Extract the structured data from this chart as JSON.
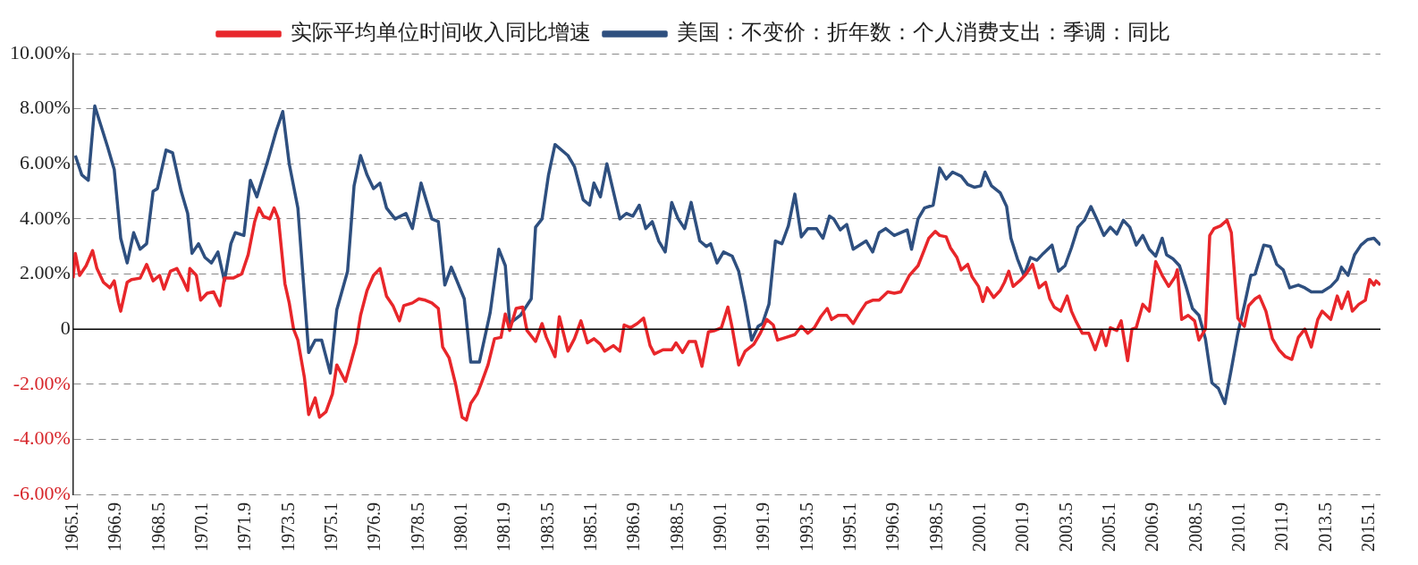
{
  "chart_data": {
    "type": "line",
    "series": [
      {
        "name": "实际平均单位时间收入同比增速",
        "color": "#e8262a",
        "x": [
          "1965-01",
          "1965-02",
          "1965-04",
          "1965-07",
          "1965-10",
          "1965-12",
          "1966-03",
          "1966-06",
          "1966-08",
          "1966-10",
          "1966-11",
          "1967-02",
          "1967-04",
          "1967-08",
          "1967-11",
          "1968-02",
          "1968-05",
          "1968-07",
          "1968-10",
          "1969-01",
          "1969-04",
          "1969-06",
          "1969-07",
          "1969-10",
          "1969-12",
          "1970-03",
          "1970-06",
          "1970-09",
          "1970-11",
          "1971-03",
          "1971-07",
          "1971-10",
          "1972-01",
          "1972-03",
          "1972-05",
          "1972-08",
          "1972-10",
          "1972-12",
          "1973-03",
          "1973-05",
          "1973-07",
          "1973-09",
          "1973-12",
          "1974-02",
          "1974-05",
          "1974-07",
          "1974-10",
          "1975-01",
          "1975-03",
          "1975-07",
          "1975-09",
          "1975-12",
          "1976-02",
          "1976-05",
          "1976-08",
          "1976-11",
          "1977-02",
          "1977-05",
          "1977-08",
          "1977-10",
          "1978-02",
          "1978-05",
          "1978-08",
          "1978-11",
          "1979-02",
          "1979-04",
          "1979-07",
          "1979-10",
          "1980-01",
          "1980-03",
          "1980-05",
          "1980-08",
          "1980-10",
          "1981-01",
          "1981-04",
          "1981-07",
          "1981-09",
          "1981-11",
          "1982-02",
          "1982-05",
          "1982-07",
          "1982-11",
          "1983-02",
          "1983-04",
          "1983-08",
          "1983-10",
          "1984-02",
          "1984-05",
          "1984-08",
          "1984-11",
          "1985-02",
          "1985-05",
          "1985-07",
          "1985-11",
          "1986-02",
          "1986-04",
          "1986-07",
          "1986-10",
          "1987-01",
          "1987-04",
          "1987-06",
          "1987-10",
          "1988-02",
          "1988-04",
          "1988-07",
          "1988-10",
          "1989-01",
          "1989-04",
          "1989-07",
          "1989-10",
          "1990-01",
          "1990-04",
          "1990-06",
          "1990-09",
          "1990-12",
          "1991-04",
          "1991-07",
          "1991-10",
          "1992-01",
          "1992-03",
          "1992-07",
          "1992-11",
          "1993-02",
          "1993-05",
          "1993-08",
          "1993-11",
          "1994-02",
          "1994-04",
          "1994-07",
          "1994-11",
          "1995-02",
          "1995-05",
          "1995-08",
          "1995-11",
          "1996-02",
          "1996-06",
          "1996-09",
          "1996-12",
          "1997-04",
          "1997-08",
          "1997-11",
          "1998-01",
          "1998-04",
          "1998-06",
          "1998-09",
          "1998-11",
          "1999-02",
          "1999-04",
          "1999-07",
          "1999-09",
          "1999-12",
          "2000-02",
          "2000-04",
          "2000-07",
          "2000-10",
          "2000-12",
          "2001-02",
          "2001-04",
          "2001-07",
          "2001-10",
          "2002-01",
          "2002-04",
          "2002-07",
          "2002-09",
          "2002-11",
          "2003-02",
          "2003-05",
          "2003-07",
          "2003-09",
          "2003-12",
          "2004-03",
          "2004-06",
          "2004-09",
          "2004-11",
          "2005-01",
          "2005-04",
          "2005-06",
          "2005-09",
          "2005-11",
          "2006-01",
          "2006-04",
          "2006-07",
          "2006-10",
          "2007-01",
          "2007-04",
          "2007-07",
          "2007-08",
          "2007-10",
          "2008-01",
          "2008-04",
          "2008-06",
          "2008-09",
          "2008-11",
          "2009-01",
          "2009-04",
          "2009-07",
          "2009-09",
          "2009-12",
          "2010-03",
          "2010-05",
          "2010-08",
          "2010-10",
          "2011-01",
          "2011-04",
          "2011-07",
          "2011-10",
          "2012-01",
          "2012-04",
          "2012-07",
          "2012-10",
          "2013-01",
          "2013-03",
          "2013-07",
          "2013-10",
          "2013-12",
          "2014-03",
          "2014-05",
          "2014-08",
          "2014-11",
          "2015-01",
          "2015-03",
          "2015-04",
          "2015-06"
        ],
        "values": [
          1.85,
          2.75,
          1.95,
          2.3,
          2.85,
          2.2,
          1.7,
          1.5,
          1.75,
          0.95,
          0.65,
          1.7,
          1.8,
          1.85,
          2.35,
          1.75,
          1.95,
          1.45,
          2.1,
          2.2,
          1.75,
          1.4,
          2.2,
          1.95,
          1.05,
          1.3,
          1.35,
          0.85,
          1.85,
          1.85,
          2.0,
          2.7,
          3.9,
          4.4,
          4.1,
          4.0,
          4.4,
          4.0,
          1.65,
          0.95,
          0.0,
          -0.4,
          -1.75,
          -3.1,
          -2.5,
          -3.2,
          -3.0,
          -2.35,
          -1.3,
          -1.9,
          -1.35,
          -0.5,
          0.5,
          1.4,
          1.95,
          2.2,
          1.2,
          0.85,
          0.3,
          0.85,
          0.95,
          1.1,
          1.05,
          0.95,
          0.75,
          -0.65,
          -1.05,
          -2.0,
          -3.2,
          -3.3,
          -2.7,
          -2.35,
          -1.95,
          -1.3,
          -0.35,
          -0.3,
          0.55,
          -0.05,
          0.75,
          0.8,
          -0.05,
          -0.45,
          0.2,
          -0.3,
          -1.0,
          0.45,
          -0.8,
          -0.35,
          0.3,
          -0.5,
          -0.35,
          -0.55,
          -0.8,
          -0.6,
          -0.8,
          0.15,
          0.05,
          0.2,
          0.4,
          -0.6,
          -0.9,
          -0.75,
          -0.75,
          -0.5,
          -0.85,
          -0.45,
          -0.45,
          -1.35,
          -0.1,
          -0.05,
          0.05,
          0.8,
          0.05,
          -1.3,
          -0.8,
          -0.55,
          -0.15,
          0.35,
          0.15,
          -0.4,
          -0.3,
          -0.2,
          0.1,
          -0.15,
          0.05,
          0.45,
          0.75,
          0.35,
          0.5,
          0.5,
          0.2,
          0.6,
          0.95,
          1.05,
          1.05,
          1.35,
          1.3,
          1.35,
          1.95,
          2.3,
          2.9,
          3.3,
          3.55,
          3.4,
          3.35,
          2.95,
          2.6,
          2.15,
          2.35,
          1.9,
          1.55,
          1.0,
          1.5,
          1.15,
          1.4,
          1.7,
          2.1,
          1.55,
          1.75,
          2.0,
          2.35,
          1.5,
          1.7,
          1.1,
          0.8,
          0.65,
          1.2,
          0.65,
          0.3,
          -0.15,
          -0.15,
          -0.75,
          -0.05,
          -0.6,
          0.05,
          -0.05,
          0.3,
          -1.15,
          0.0,
          0.05,
          0.9,
          0.65,
          2.45,
          1.95,
          1.55,
          1.9,
          2.15,
          0.35,
          0.5,
          0.3,
          -0.4,
          0.0,
          3.4,
          3.65,
          3.75,
          3.95,
          3.5,
          0.4,
          0.1,
          0.85,
          1.1,
          1.2,
          0.65,
          -0.35,
          -0.75,
          -1.0,
          -1.1,
          -0.3,
          0.0,
          -0.65,
          0.35,
          0.65,
          0.35,
          1.2,
          0.75,
          1.35,
          0.65,
          0.9,
          1.05,
          1.8,
          1.6,
          1.75,
          1.6
        ]
      },
      {
        "name": "美国：不变价：折年数：个人消费支出：季调：同比",
        "color": "#2e4f7f",
        "x": [
          "1965-02",
          "1965-05",
          "1965-08",
          "1965-11",
          "1966-05",
          "1966-08",
          "1966-11",
          "1967-02",
          "1967-05",
          "1967-08",
          "1967-11",
          "1968-02",
          "1968-04",
          "1968-08",
          "1968-11",
          "1969-03",
          "1969-06",
          "1969-08",
          "1969-11",
          "1970-02",
          "1970-05",
          "1970-08",
          "1970-11",
          "1971-02",
          "1971-04",
          "1971-08",
          "1971-11",
          "1972-02",
          "1972-07",
          "1972-11",
          "1973-02",
          "1973-05",
          "1973-09",
          "1974-02",
          "1974-05",
          "1974-08",
          "1974-12",
          "1975-03",
          "1975-08",
          "1975-11",
          "1976-02",
          "1976-05",
          "1976-08",
          "1976-11",
          "1977-02",
          "1977-06",
          "1977-11",
          "1978-02",
          "1978-06",
          "1978-11",
          "1979-02",
          "1979-05",
          "1979-08",
          "1980-02",
          "1980-05",
          "1980-09",
          "1981-02",
          "1981-06",
          "1981-09",
          "1981-11",
          "1982-04",
          "1982-09",
          "1982-11",
          "1983-02",
          "1983-05",
          "1983-08",
          "1984-02",
          "1984-05",
          "1984-09",
          "1984-12",
          "1985-02",
          "1985-05",
          "1985-08",
          "1985-11",
          "1986-02",
          "1986-05",
          "1986-08",
          "1986-11",
          "1987-02",
          "1987-05",
          "1987-08",
          "1987-11",
          "1988-02",
          "1988-05",
          "1988-08",
          "1988-11",
          "1989-03",
          "1989-06",
          "1989-08",
          "1989-11",
          "1990-02",
          "1990-06",
          "1990-09",
          "1990-12",
          "1991-03",
          "1991-06",
          "1991-08",
          "1991-11",
          "1992-02",
          "1992-05",
          "1992-08",
          "1992-11",
          "1993-02",
          "1993-05",
          "1993-09",
          "1993-12",
          "1994-03",
          "1994-05",
          "1994-08",
          "1994-11",
          "1995-02",
          "1995-08",
          "1995-11",
          "1996-02",
          "1996-05",
          "1996-09",
          "1997-03",
          "1997-05",
          "1997-08",
          "1997-11",
          "1998-03",
          "1998-06",
          "1998-09",
          "1998-12",
          "1999-04",
          "1999-07",
          "1999-10",
          "2000-01",
          "2000-03",
          "2000-06",
          "2000-10",
          "2001-01",
          "2001-03",
          "2001-06",
          "2001-09",
          "2001-12",
          "2002-03",
          "2002-06",
          "2002-10",
          "2003-01",
          "2003-04",
          "2003-07",
          "2003-10",
          "2004-01",
          "2004-04",
          "2004-07",
          "2004-10",
          "2005-01",
          "2005-04",
          "2005-07",
          "2005-10",
          "2006-01",
          "2006-04",
          "2006-07",
          "2006-10",
          "2007-01",
          "2007-03",
          "2007-06",
          "2007-09",
          "2007-12",
          "2008-03",
          "2008-06",
          "2008-09",
          "2008-12",
          "2009-03",
          "2009-06",
          "2009-09",
          "2009-12",
          "2010-03",
          "2010-06",
          "2010-08",
          "2010-12",
          "2011-03",
          "2011-06",
          "2011-09",
          "2011-12",
          "2012-04",
          "2012-07",
          "2012-10",
          "2013-03",
          "2013-07",
          "2013-10",
          "2013-12",
          "2014-03",
          "2014-06",
          "2014-09",
          "2014-12",
          "2015-03",
          "2015-06"
        ],
        "values": [
          6.3,
          5.6,
          5.4,
          8.1,
          6.6,
          5.8,
          3.3,
          2.4,
          3.5,
          2.9,
          3.1,
          5.0,
          5.1,
          6.5,
          6.4,
          5.0,
          4.2,
          2.75,
          3.1,
          2.6,
          2.4,
          2.8,
          1.75,
          3.1,
          3.5,
          3.4,
          5.4,
          4.8,
          6.1,
          7.2,
          7.9,
          6.0,
          4.4,
          -0.85,
          -0.4,
          -0.4,
          -1.6,
          0.7,
          2.1,
          5.2,
          6.3,
          5.6,
          5.1,
          5.3,
          4.4,
          4.0,
          4.2,
          3.65,
          5.3,
          4.0,
          3.9,
          1.6,
          2.25,
          1.1,
          -1.2,
          -1.2,
          0.6,
          2.9,
          2.3,
          0.2,
          0.5,
          1.1,
          3.7,
          4.0,
          5.6,
          6.7,
          6.3,
          5.9,
          4.7,
          4.5,
          5.3,
          4.8,
          6.0,
          5.0,
          4.0,
          4.2,
          4.1,
          4.5,
          3.65,
          3.9,
          3.2,
          2.8,
          4.6,
          4.0,
          3.65,
          4.6,
          3.2,
          3.0,
          3.1,
          2.4,
          2.8,
          2.65,
          2.1,
          0.95,
          -0.4,
          0.1,
          0.2,
          0.9,
          3.2,
          3.1,
          3.75,
          4.9,
          3.35,
          3.65,
          3.65,
          3.3,
          4.1,
          4.0,
          3.6,
          3.8,
          2.9,
          3.2,
          2.8,
          3.5,
          3.65,
          3.4,
          3.6,
          2.9,
          4.0,
          4.4,
          4.5,
          5.85,
          5.45,
          5.7,
          5.55,
          5.25,
          5.15,
          5.2,
          5.7,
          5.2,
          4.95,
          4.45,
          3.3,
          2.55,
          1.95,
          2.6,
          2.5,
          2.75,
          3.05,
          2.1,
          2.3,
          2.95,
          3.7,
          3.95,
          4.45,
          3.95,
          3.4,
          3.7,
          3.45,
          3.95,
          3.7,
          3.05,
          3.4,
          2.9,
          2.65,
          3.3,
          2.7,
          2.55,
          2.3,
          1.55,
          0.75,
          0.5,
          -0.35,
          -1.95,
          -2.15,
          -2.7,
          -1.45,
          -0.15,
          0.85,
          1.95,
          2.0,
          3.05,
          3.0,
          2.35,
          2.15,
          1.5,
          1.6,
          1.5,
          1.35,
          1.35,
          1.55,
          1.8,
          2.25,
          1.95,
          2.7,
          3.05,
          3.25,
          3.3,
          3.05
        ]
      }
    ],
    "xlim": [
      "1965-01",
      "2015-06"
    ],
    "xticks": [
      {
        "value": "1965-01",
        "label": "1965.1"
      },
      {
        "value": "1966-09",
        "label": "1966.9"
      },
      {
        "value": "1968-05",
        "label": "1968.5"
      },
      {
        "value": "1970-01",
        "label": "1970.1"
      },
      {
        "value": "1971-09",
        "label": "1971.9"
      },
      {
        "value": "1973-05",
        "label": "1973.5"
      },
      {
        "value": "1975-01",
        "label": "1975.1"
      },
      {
        "value": "1976-09",
        "label": "1976.9"
      },
      {
        "value": "1978-05",
        "label": "1978.5"
      },
      {
        "value": "1980-01",
        "label": "1980.1"
      },
      {
        "value": "1981-09",
        "label": "1981.9"
      },
      {
        "value": "1983-05",
        "label": "1983.5"
      },
      {
        "value": "1985-01",
        "label": "1985.1"
      },
      {
        "value": "1986-09",
        "label": "1986.9"
      },
      {
        "value": "1988-05",
        "label": "1988.5"
      },
      {
        "value": "1990-01",
        "label": "1990.1"
      },
      {
        "value": "1991-09",
        "label": "1991.9"
      },
      {
        "value": "1993-05",
        "label": "1993.5"
      },
      {
        "value": "1995-01",
        "label": "1995.1"
      },
      {
        "value": "1996-09",
        "label": "1996.9"
      },
      {
        "value": "1998-05",
        "label": "1998.5"
      },
      {
        "value": "2000-01",
        "label": "2000.1"
      },
      {
        "value": "2001-09",
        "label": "2001.9"
      },
      {
        "value": "2003-05",
        "label": "2003.5"
      },
      {
        "value": "2005-01",
        "label": "2005.1"
      },
      {
        "value": "2006-09",
        "label": "2006.9"
      },
      {
        "value": "2008-05",
        "label": "2008.5"
      },
      {
        "value": "2010-01",
        "label": "2010.1"
      },
      {
        "value": "2011-09",
        "label": "2011.9"
      },
      {
        "value": "2013-05",
        "label": "2013.5"
      },
      {
        "value": "2015-01",
        "label": "2015.1"
      }
    ],
    "ylim": [
      -6,
      10
    ],
    "yticks": [
      {
        "value": -6,
        "label": "-6.00%"
      },
      {
        "value": -4,
        "label": "-4.00%"
      },
      {
        "value": -2,
        "label": "-2.00%"
      },
      0,
      {
        "value": 2,
        "label": "2.00%"
      },
      {
        "value": 4,
        "label": "4.00%"
      },
      {
        "value": 6,
        "label": "6.00%"
      },
      {
        "value": 8,
        "label": "8.00%"
      },
      {
        "value": 10,
        "label": "10.00%"
      }
    ],
    "ref_lines": [
      {
        "axis": "y",
        "value": 0,
        "color": "#000000"
      }
    ],
    "grid": "y",
    "legend": "top",
    "marker": "none",
    "line_style": "solid"
  }
}
